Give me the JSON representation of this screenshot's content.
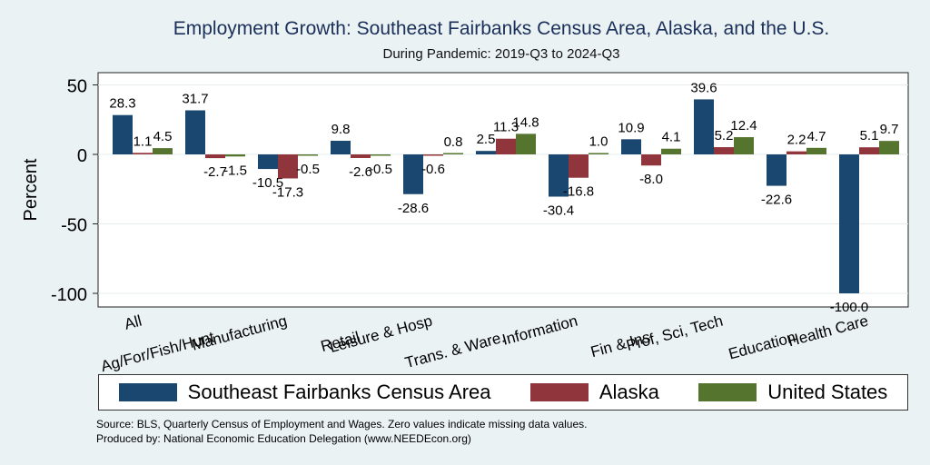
{
  "chart_data": {
    "type": "bar",
    "title": "Employment Growth: Southeast Fairbanks Census Area, Alaska, and the U.S.",
    "subtitle": "During Pandemic: 2019-Q3 to 2024-Q3",
    "ylabel": "Percent",
    "xlabel": "",
    "ylim": [
      -110,
      60
    ],
    "yticks": [
      50,
      0,
      -50,
      -100
    ],
    "grid": true,
    "categories": [
      "All",
      "Ag/For/Fish/Hunt",
      "Manufacturing",
      "Retail",
      "Leisure & Hosp",
      "Trans. & Ware.",
      "Information",
      "Fin & Ins",
      "Prof, Sci, Tech",
      "Education",
      "Health Care"
    ],
    "series": [
      {
        "name": "Southeast Fairbanks Census Area",
        "color": "#1a476f",
        "values": [
          28.3,
          31.7,
          -10.5,
          9.8,
          -28.6,
          2.5,
          -30.4,
          10.9,
          39.6,
          -22.6,
          -100.0
        ],
        "labels": [
          "28.3",
          "31.7",
          "-10.5",
          "9.8",
          "-28.6",
          "2.5",
          "-30.4",
          "10.9",
          "39.6",
          "-22.6",
          "-100.0"
        ]
      },
      {
        "name": "Alaska",
        "color": "#90353b",
        "values": [
          1.1,
          -2.7,
          -17.3,
          -2.6,
          -0.6,
          11.3,
          -16.8,
          -8.0,
          5.2,
          2.2,
          5.1
        ],
        "labels": [
          "1.1",
          "-2.7",
          "-17.3",
          "-2.6",
          "-0.6",
          "11.3",
          "-16.8",
          "-8.0",
          "5.2",
          "2.2",
          "5.1"
        ]
      },
      {
        "name": "United States",
        "color": "#55752f",
        "values": [
          4.5,
          -1.5,
          -0.5,
          -0.5,
          0.8,
          14.8,
          1.0,
          4.1,
          12.4,
          4.7,
          9.7
        ],
        "labels": [
          "4.5",
          "-1.5",
          "-0.5",
          "-0.5",
          "0.8",
          "14.8",
          "1.0",
          "4.1",
          "12.4",
          "4.7",
          "9.7"
        ]
      }
    ],
    "legend_position": "bottom"
  },
  "footer": {
    "source": "Source: BLS, Quarterly Census of Employment and Wages. Zero values indicate missing data values.",
    "produced_by": "Produced by: National Economic Education Delegation (www.NEEDEcon.org)"
  }
}
